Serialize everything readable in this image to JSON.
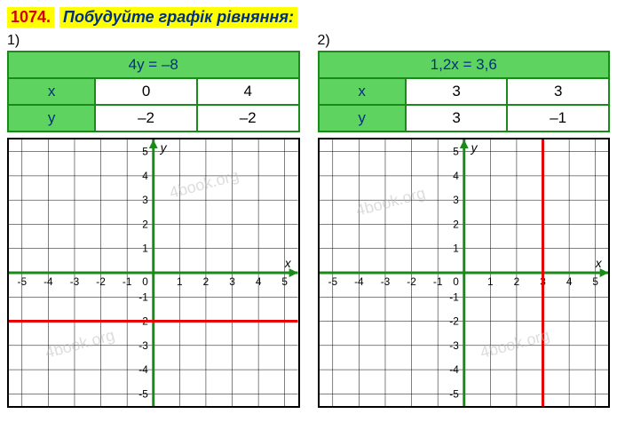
{
  "title": {
    "number": "1074.",
    "text": "Побудуйте графік рівняння:"
  },
  "panels": [
    {
      "index": "1)",
      "equation": "4y = –8",
      "table": {
        "row_x_label": "x",
        "row_y_label": "y",
        "x_vals": [
          "0",
          "4"
        ],
        "y_vals": [
          "–2",
          "–2"
        ]
      },
      "graph": {
        "type": "line",
        "xlim": [
          -5.5,
          5.5
        ],
        "ylim": [
          -5.5,
          5.5
        ],
        "tick_step": 1,
        "x_ticks": [
          -5,
          -4,
          -3,
          -2,
          -1,
          1,
          2,
          3,
          4,
          5
        ],
        "y_ticks": [
          -5,
          -4,
          -3,
          -2,
          -1,
          1,
          2,
          3,
          4,
          5
        ],
        "axis_color": "#1a8a1a",
        "grid_color": "#000000",
        "background_color": "#ffffff",
        "line_color": "#e60000",
        "line_width": 3,
        "line_type": "horizontal",
        "line_value": -2,
        "tick_label_color": "#000000",
        "tick_fontsize": 12,
        "axis_label_x": "x",
        "axis_label_y": "y",
        "origin_label": "0"
      }
    },
    {
      "index": "2)",
      "equation": "1,2x = 3,6",
      "table": {
        "row_x_label": "x",
        "row_y_label": "y",
        "x_vals": [
          "3",
          "3"
        ],
        "y_vals": [
          "3",
          "–1"
        ]
      },
      "graph": {
        "type": "line",
        "xlim": [
          -5.5,
          5.5
        ],
        "ylim": [
          -5.5,
          5.5
        ],
        "tick_step": 1,
        "x_ticks": [
          -5,
          -4,
          -3,
          -2,
          -1,
          1,
          2,
          3,
          4,
          5
        ],
        "y_ticks": [
          -5,
          -4,
          -3,
          -2,
          -1,
          1,
          2,
          3,
          4,
          5
        ],
        "axis_color": "#1a8a1a",
        "grid_color": "#000000",
        "background_color": "#ffffff",
        "line_color": "#e60000",
        "line_width": 3,
        "line_type": "vertical",
        "line_value": 3,
        "tick_label_color": "#000000",
        "tick_fontsize": 12,
        "axis_label_x": "x",
        "axis_label_y": "y",
        "origin_label": "0"
      }
    }
  ],
  "watermark_text": "4book.org"
}
